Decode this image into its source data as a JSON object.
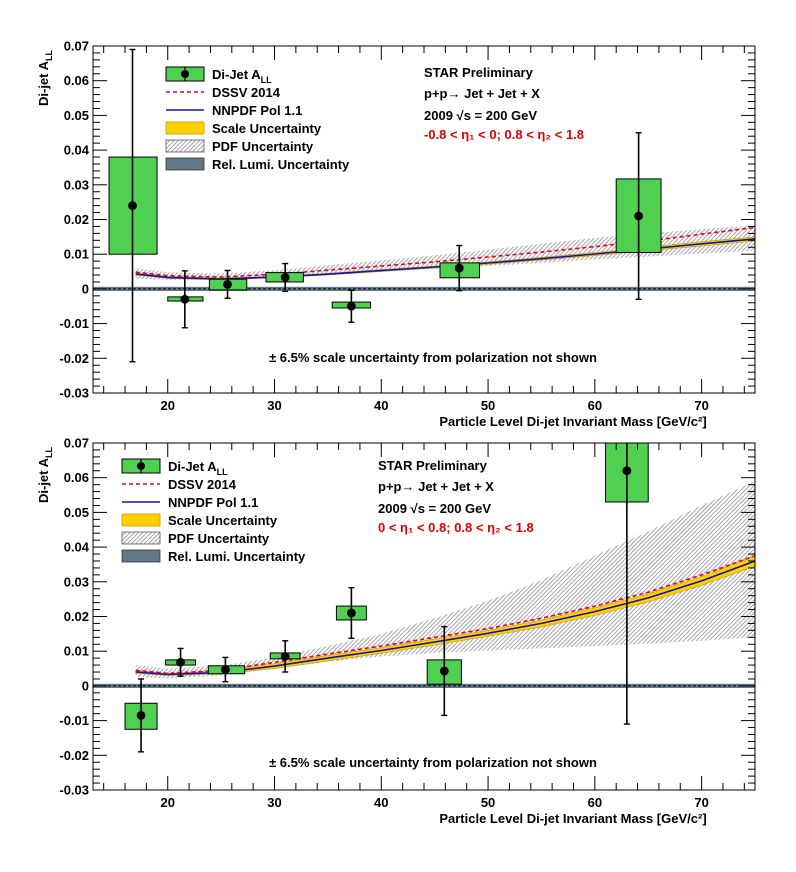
{
  "colors": {
    "box_fill": "#50d050",
    "dssv": "#e8001c",
    "nnpdf": "#1010c0",
    "scale_band": "#ffd000",
    "pdf_band": "#a0a0a8",
    "lumi": "#607888",
    "annotation_red": "#e00000"
  },
  "legend": {
    "data": "Di-Jet A",
    "data_sub": "LL",
    "dssv": "DSSV 2014",
    "nnpdf": "NNPDF Pol 1.1",
    "scale": "Scale Uncertainty",
    "pdf": "PDF Uncertainty",
    "lumi": "Rel. Lumi. Uncertainty"
  },
  "chart_data": [
    {
      "type": "scatter",
      "panel": "top",
      "title": "STAR Preliminary",
      "process": "p+p→ Jet + Jet + X",
      "energy_prefix": "2009",
      "energy_text": "s = 200 GeV",
      "eta_cut": "-0.8 < η₁ < 0; 0.8 < η₂ < 1.8",
      "note": "± 6.5% scale uncertainty from polarization not shown",
      "xlabel": "Particle Level Di-jet Invariant Mass [GeV/c²]",
      "ylabel": "Di-jet A",
      "ylabel_sub": "LL",
      "xlim": [
        13,
        75
      ],
      "ylim": [
        -0.03,
        0.07
      ],
      "x_ticks": [
        20,
        30,
        40,
        50,
        60,
        70
      ],
      "x_tick_labels": [
        "20",
        "30",
        "40",
        "50",
        "60",
        "70"
      ],
      "y_ticks": [
        -0.03,
        -0.02,
        -0.01,
        0,
        0.01,
        0.02,
        0.03,
        0.04,
        0.05,
        0.06,
        0.07
      ],
      "y_tick_labels": [
        "-0.03",
        "-0.02",
        "-0.01",
        "0",
        "0.01",
        "0.02",
        "0.03",
        "0.04",
        "0.05",
        "0.06",
        "0.07"
      ],
      "points": [
        {
          "x": 16.7,
          "y": 0.024,
          "err": 0.045,
          "sys_lo": 0.01,
          "sys_hi": 0.038,
          "x_lo": 14.5,
          "x_hi": 19.0
        },
        {
          "x": 21.6,
          "y": -0.003,
          "err": 0.0082,
          "sys_lo": -0.0035,
          "sys_hi": -0.0023,
          "x_lo": 20.0,
          "x_hi": 23.3
        },
        {
          "x": 25.6,
          "y": 0.0013,
          "err": 0.004,
          "sys_lo": -0.0003,
          "sys_hi": 0.0028,
          "x_lo": 23.9,
          "x_hi": 27.4
        },
        {
          "x": 31.0,
          "y": 0.0033,
          "err": 0.004,
          "sys_lo": 0.002,
          "sys_hi": 0.0047,
          "x_lo": 29.2,
          "x_hi": 32.7
        },
        {
          "x": 37.2,
          "y": -0.005,
          "err": 0.0046,
          "sys_lo": -0.0055,
          "sys_hi": -0.0038,
          "x_lo": 35.4,
          "x_hi": 39.0
        },
        {
          "x": 47.3,
          "y": 0.006,
          "err": 0.0065,
          "sys_lo": 0.0032,
          "sys_hi": 0.0075,
          "x_lo": 45.5,
          "x_hi": 49.2
        },
        {
          "x": 64.1,
          "y": 0.021,
          "err": 0.024,
          "sys_lo": 0.0105,
          "sys_hi": 0.0317,
          "x_lo": 62.0,
          "x_hi": 66.2
        }
      ],
      "curves": {
        "x": [
          17,
          20,
          25,
          30,
          35,
          40,
          45,
          50,
          55,
          60,
          65,
          70,
          75
        ],
        "dssv": [
          0.0048,
          0.0038,
          0.0034,
          0.0042,
          0.0054,
          0.0066,
          0.0078,
          0.0092,
          0.0106,
          0.0122,
          0.0138,
          0.0158,
          0.0177
        ],
        "scale_lo": [
          0.004,
          0.003,
          0.0026,
          0.0032,
          0.004,
          0.005,
          0.006,
          0.0071,
          0.0083,
          0.0096,
          0.011,
          0.0124,
          0.0138
        ],
        "scale_hi": [
          0.0046,
          0.0036,
          0.0031,
          0.0036,
          0.0045,
          0.0056,
          0.0066,
          0.0078,
          0.0091,
          0.0105,
          0.012,
          0.0136,
          0.015
        ],
        "pdf_lo": [
          0.003,
          0.0026,
          0.0026,
          0.0032,
          0.0041,
          0.005,
          0.0058,
          0.0066,
          0.0075,
          0.0085,
          0.0093,
          0.0102,
          0.011
        ],
        "pdf_hi": [
          0.006,
          0.0048,
          0.0044,
          0.0054,
          0.0068,
          0.0082,
          0.0097,
          0.0113,
          0.013,
          0.0147,
          0.016,
          0.0172,
          0.0183
        ]
      },
      "lumi_band": [
        -0.0006,
        0.0006
      ]
    },
    {
      "type": "scatter",
      "panel": "bottom",
      "title": "STAR Preliminary",
      "process": "p+p→ Jet + Jet + X",
      "energy_prefix": "2009",
      "energy_text": "s = 200 GeV",
      "eta_cut": "0 < η₁ < 0.8; 0.8 < η₂ < 1.8",
      "note": "± 6.5% scale uncertainty from polarization not shown",
      "xlabel": "Particle Level Di-jet Invariant Mass [GeV/c²]",
      "ylabel": "Di-jet A",
      "ylabel_sub": "LL",
      "xlim": [
        13,
        75
      ],
      "ylim": [
        -0.03,
        0.07
      ],
      "x_ticks": [
        20,
        30,
        40,
        50,
        60,
        70
      ],
      "x_tick_labels": [
        "20",
        "30",
        "40",
        "50",
        "60",
        "70"
      ],
      "y_ticks": [
        -0.03,
        -0.02,
        -0.01,
        0,
        0.01,
        0.02,
        0.03,
        0.04,
        0.05,
        0.06,
        0.07
      ],
      "y_tick_labels": [
        "-0.03",
        "-0.02",
        "-0.01",
        "0",
        "0.01",
        "0.02",
        "0.03",
        "0.04",
        "0.05",
        "0.06",
        "0.07"
      ],
      "points": [
        {
          "x": 17.5,
          "y": -0.0085,
          "err": 0.0105,
          "sys_lo": -0.0125,
          "sys_hi": -0.005,
          "x_lo": 16.0,
          "x_hi": 19.0
        },
        {
          "x": 21.2,
          "y": 0.0068,
          "err": 0.004,
          "sys_lo": 0.006,
          "sys_hi": 0.0075,
          "x_lo": 19.8,
          "x_hi": 22.6
        },
        {
          "x": 25.4,
          "y": 0.0047,
          "err": 0.0035,
          "sys_lo": 0.0035,
          "sys_hi": 0.0058,
          "x_lo": 23.8,
          "x_hi": 27.2
        },
        {
          "x": 31.0,
          "y": 0.0085,
          "err": 0.0045,
          "sys_lo": 0.0078,
          "sys_hi": 0.0095,
          "x_lo": 29.6,
          "x_hi": 32.4
        },
        {
          "x": 37.2,
          "y": 0.021,
          "err": 0.0073,
          "sys_lo": 0.019,
          "sys_hi": 0.023,
          "x_lo": 35.8,
          "x_hi": 38.6
        },
        {
          "x": 45.9,
          "y": 0.0043,
          "err": 0.0128,
          "sys_lo": 0.0005,
          "sys_hi": 0.0075,
          "x_lo": 44.3,
          "x_hi": 47.5
        },
        {
          "x": 63.0,
          "y": 0.062,
          "err": 0.073,
          "sys_lo": 0.053,
          "sys_hi": 0.07,
          "x_lo": 61.0,
          "x_hi": 65.0
        }
      ],
      "curves": {
        "x": [
          17,
          20,
          25,
          30,
          35,
          40,
          45,
          50,
          55,
          60,
          65,
          70,
          75
        ],
        "dssv": [
          0.0045,
          0.0036,
          0.0045,
          0.0068,
          0.0092,
          0.0115,
          0.014,
          0.0165,
          0.0195,
          0.023,
          0.027,
          0.032,
          0.0375
        ],
        "scale_lo": [
          0.0036,
          0.003,
          0.0034,
          0.005,
          0.0072,
          0.0094,
          0.0118,
          0.0143,
          0.017,
          0.0203,
          0.0242,
          0.029,
          0.0345
        ],
        "scale_hi": [
          0.0044,
          0.0036,
          0.0044,
          0.0064,
          0.0088,
          0.011,
          0.0135,
          0.016,
          0.019,
          0.0225,
          0.0265,
          0.0315,
          0.0375
        ],
        "pdf_lo": [
          0.0026,
          0.0022,
          0.003,
          0.005,
          0.007,
          0.0085,
          0.0095,
          0.0102,
          0.0108,
          0.0115,
          0.0122,
          0.013,
          0.014
        ],
        "pdf_hi": [
          0.006,
          0.005,
          0.0058,
          0.0082,
          0.0115,
          0.015,
          0.0195,
          0.0245,
          0.0305,
          0.0375,
          0.0445,
          0.052,
          0.059
        ]
      },
      "lumi_band": [
        -0.0006,
        0.0006
      ]
    }
  ]
}
